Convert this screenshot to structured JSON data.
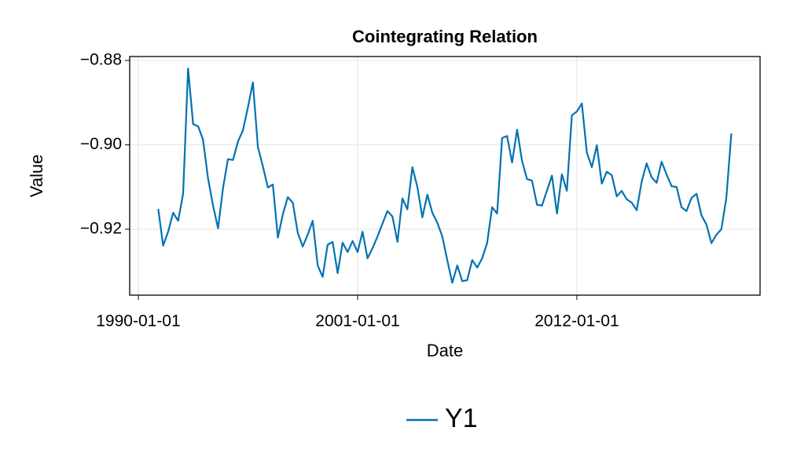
{
  "chart_data": {
    "type": "line",
    "title": "Cointegrating Relation",
    "x_label": "Date",
    "y_label": "Value",
    "x": [
      "1991-01-01",
      "1991-04-01",
      "1991-07-01",
      "1991-10-01",
      "1992-01-01",
      "1992-04-01",
      "1992-07-01",
      "1992-10-01",
      "1993-01-01",
      "1993-04-01",
      "1993-07-01",
      "1993-10-01",
      "1994-01-01",
      "1994-04-01",
      "1994-07-01",
      "1994-10-01",
      "1995-01-01",
      "1995-04-01",
      "1995-07-01",
      "1995-10-01",
      "1996-01-01",
      "1996-04-01",
      "1996-07-01",
      "1996-10-01",
      "1997-01-01",
      "1997-04-01",
      "1997-07-01",
      "1997-10-01",
      "1998-01-01",
      "1998-04-01",
      "1998-07-01",
      "1998-10-01",
      "1999-01-01",
      "1999-04-01",
      "1999-07-01",
      "1999-10-01",
      "2000-01-01",
      "2000-04-01",
      "2000-07-01",
      "2000-10-01",
      "2001-01-01",
      "2001-04-01",
      "2001-07-01",
      "2001-10-01",
      "2002-01-01",
      "2002-04-01",
      "2002-07-01",
      "2002-10-01",
      "2003-01-01",
      "2003-04-01",
      "2003-07-01",
      "2003-10-01",
      "2004-01-01",
      "2004-04-01",
      "2004-07-01",
      "2004-10-01",
      "2005-01-01",
      "2005-04-01",
      "2005-07-01",
      "2005-10-01",
      "2006-01-01",
      "2006-04-01",
      "2006-07-01",
      "2006-10-01",
      "2007-01-01",
      "2007-04-01",
      "2007-07-01",
      "2007-10-01",
      "2008-01-01",
      "2008-04-01",
      "2008-07-01",
      "2008-10-01",
      "2009-01-01",
      "2009-04-01",
      "2009-07-01",
      "2009-10-01",
      "2010-01-01",
      "2010-04-01",
      "2010-07-01",
      "2010-10-01",
      "2011-01-01",
      "2011-04-01",
      "2011-07-01",
      "2011-10-01",
      "2012-01-01",
      "2012-04-01",
      "2012-07-01",
      "2012-10-01",
      "2013-01-01",
      "2013-04-01",
      "2013-07-01",
      "2013-10-01",
      "2014-01-01",
      "2014-04-01",
      "2014-07-01",
      "2014-10-01",
      "2015-01-01",
      "2015-04-01",
      "2015-07-01",
      "2015-10-01",
      "2016-01-01",
      "2016-04-01",
      "2016-07-01",
      "2016-10-01",
      "2017-01-01",
      "2017-04-01",
      "2017-07-01",
      "2017-10-01",
      "2018-01-01",
      "2018-04-01",
      "2018-07-01",
      "2018-10-01",
      "2019-01-01",
      "2019-04-01",
      "2019-07-01",
      "2019-10-01"
    ],
    "series": [
      {
        "name": "Y1",
        "color": "#0072b2",
        "values": [
          -0.9152,
          -0.9239,
          -0.9206,
          -0.9161,
          -0.918,
          -0.9116,
          -0.8819,
          -0.8951,
          -0.8956,
          -0.8988,
          -0.9079,
          -0.9144,
          -0.9198,
          -0.9103,
          -0.9034,
          -0.9036,
          -0.8992,
          -0.8966,
          -0.8912,
          -0.8852,
          -0.9005,
          -0.9051,
          -0.9101,
          -0.9094,
          -0.922,
          -0.9165,
          -0.9124,
          -0.9137,
          -0.9209,
          -0.9241,
          -0.9213,
          -0.918,
          -0.9286,
          -0.9313,
          -0.9237,
          -0.923,
          -0.9304,
          -0.9232,
          -0.9254,
          -0.9228,
          -0.9254,
          -0.9206,
          -0.9269,
          -0.9245,
          -0.9217,
          -0.9187,
          -0.9157,
          -0.917,
          -0.923,
          -0.9127,
          -0.9153,
          -0.9053,
          -0.91,
          -0.9172,
          -0.9118,
          -0.9161,
          -0.9185,
          -0.9217,
          -0.9273,
          -0.9327,
          -0.9286,
          -0.9323,
          -0.9321,
          -0.9273,
          -0.9291,
          -0.9269,
          -0.9233,
          -0.9148,
          -0.9163,
          -0.8984,
          -0.8979,
          -0.9042,
          -0.8964,
          -0.9038,
          -0.9081,
          -0.9085,
          -0.9142,
          -0.9144,
          -0.9109,
          -0.9073,
          -0.9163,
          -0.907,
          -0.9109,
          -0.893,
          -0.8921,
          -0.8902,
          -0.9018,
          -0.9053,
          -0.9001,
          -0.9092,
          -0.9064,
          -0.9072,
          -0.9122,
          -0.9109,
          -0.9129,
          -0.9137,
          -0.9155,
          -0.9088,
          -0.9044,
          -0.9077,
          -0.909,
          -0.904,
          -0.907,
          -0.9098,
          -0.91,
          -0.9148,
          -0.9157,
          -0.9126,
          -0.9116,
          -0.9167,
          -0.9189,
          -0.9233,
          -0.9213,
          -0.92,
          -0.9126,
          -0.8973
        ]
      }
    ],
    "xlim": [
      "1989-07-27",
      "2021-03-10"
    ],
    "xticks": [
      "1990-01-01",
      "2001-01-01",
      "2012-01-01"
    ],
    "ylim": [
      -0.93563,
      -0.87907
    ],
    "yticks": [
      {
        "value": -0.92,
        "label": "−0.92"
      },
      {
        "value": -0.9,
        "label": "−0.90"
      },
      {
        "value": -0.88,
        "label": "−0.88"
      }
    ],
    "grid": true,
    "legend": "bottom"
  }
}
